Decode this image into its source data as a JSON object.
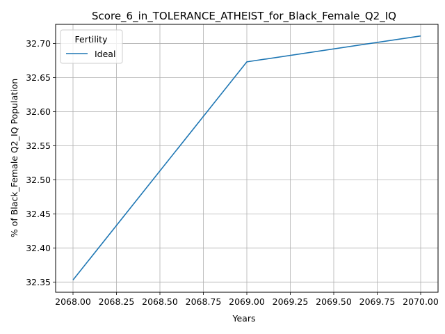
{
  "chart_data": {
    "type": "line",
    "title": "Score_6_in_TOLERANCE_ATHEIST_for_Black_Female_Q2_IQ",
    "xlabel": "Years",
    "ylabel": "% of Black_Female Q2_IQ Population",
    "xlim": [
      2067.9,
      2070.1
    ],
    "ylim": [
      32.335,
      32.728
    ],
    "xticks": [
      2068.0,
      2068.25,
      2068.5,
      2068.75,
      2069.0,
      2069.25,
      2069.5,
      2069.75,
      2070.0
    ],
    "xtick_labels": [
      "2068.00",
      "2068.25",
      "2068.50",
      "2068.75",
      "2069.00",
      "2069.25",
      "2069.50",
      "2069.75",
      "2070.00"
    ],
    "yticks": [
      32.35,
      32.4,
      32.45,
      32.5,
      32.55,
      32.6,
      32.65,
      32.7
    ],
    "ytick_labels": [
      "32.35",
      "32.40",
      "32.45",
      "32.50",
      "32.55",
      "32.60",
      "32.65",
      "32.70"
    ],
    "grid": true,
    "legend": {
      "title": "Fertility",
      "placement": "upper-left"
    },
    "series": [
      {
        "name": "Ideal",
        "color": "#1f77b4",
        "x": [
          2068,
          2069,
          2070
        ],
        "y": [
          32.353,
          32.673,
          32.711
        ]
      }
    ]
  }
}
